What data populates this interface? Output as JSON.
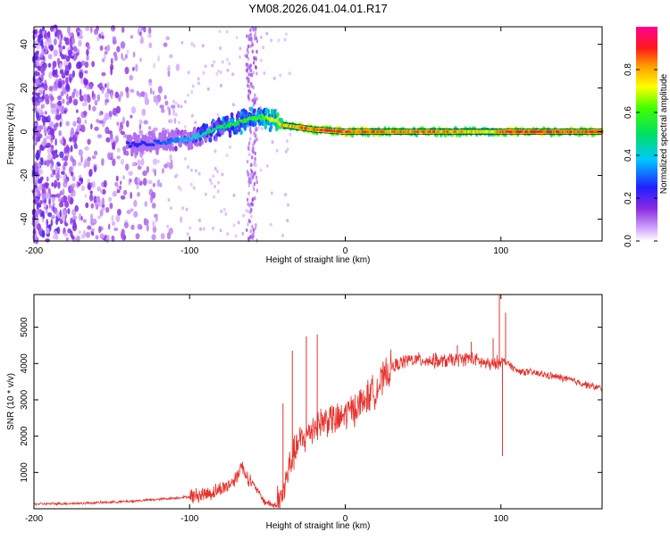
{
  "chart_data": [
    {
      "type": "heatmap",
      "title": "YM08.2026.041.04.01.R17",
      "xlabel": "Height of straight line (km)",
      "ylabel": "Frequency (Hz)",
      "xlim": [
        -200,
        165
      ],
      "ylim": [
        -50,
        48
      ],
      "xticks": [
        -200,
        -100,
        0,
        100
      ],
      "xtick_labels": [
        "-200",
        "-100",
        "0",
        "100"
      ],
      "yticks": [
        -40,
        -20,
        0,
        20,
        40
      ],
      "ytick_labels": [
        "-40",
        "-20",
        "0",
        "20",
        "40"
      ],
      "colorbar": {
        "label": "Normalized spectral amplitude",
        "range": [
          0,
          1
        ],
        "ticks": [
          0,
          0.2,
          0.4,
          0.6,
          0.8
        ],
        "tick_labels": [
          "0.0",
          "0.2",
          "0.4",
          "0.6",
          "0.8"
        ],
        "colormap": "rainbow (white-violet-blue-cyan-green-yellow-orange-red-magenta)"
      },
      "ridge": {
        "description": "dominant frequency track vs height",
        "x": [
          -140,
          -120,
          -100,
          -90,
          -80,
          -70,
          -60,
          -55,
          -50,
          -45,
          -40,
          -30,
          -20,
          -10,
          0,
          20,
          40,
          60,
          80,
          95,
          100,
          120,
          140,
          165
        ],
        "freq_hz": [
          -6,
          -5,
          -3,
          -1,
          2,
          4,
          6,
          7,
          6,
          5,
          3,
          2,
          1,
          0.5,
          0,
          0,
          0,
          0,
          0,
          0,
          0,
          0,
          0,
          0
        ],
        "amplitude": [
          0.25,
          0.3,
          0.4,
          0.5,
          0.55,
          0.6,
          0.6,
          0.65,
          0.7,
          0.75,
          0.85,
          0.9,
          0.95,
          0.95,
          0.95,
          0.9,
          0.9,
          0.9,
          0.85,
          0.8,
          0.95,
          0.95,
          0.95,
          0.95
        ]
      },
      "noise_region": {
        "x_range": [
          -200,
          -115
        ],
        "description": "scattered low-amplitude noise across full band"
      },
      "vertical_band": {
        "x_center": -60,
        "description": "broadband faint vertical stripe"
      }
    },
    {
      "type": "line",
      "xlabel": "Height of straight line (km)",
      "ylabel": "SNR (10 * v/v)",
      "xlim": [
        -200,
        165
      ],
      "ylim": [
        0,
        5900
      ],
      "xticks": [
        -200,
        -100,
        0,
        100
      ],
      "xtick_labels": [
        "-200",
        "-100",
        "0",
        "100"
      ],
      "yticks": [
        1000,
        2000,
        3000,
        4000,
        5000
      ],
      "ytick_labels": [
        "1000",
        "2000",
        "3000",
        "4000",
        "5000"
      ],
      "series": [
        {
          "name": "SNR",
          "color": "#e8302a",
          "x": [
            -200,
            -170,
            -140,
            -120,
            -100,
            -85,
            -75,
            -70,
            -67,
            -63,
            -58,
            -52,
            -45,
            -40,
            -35,
            -30,
            -25,
            -20,
            -15,
            -10,
            -5,
            0,
            10,
            20,
            30,
            40,
            50,
            60,
            70,
            80,
            90,
            95,
            100,
            105,
            110,
            120,
            140,
            165
          ],
          "y": [
            130,
            150,
            200,
            260,
            330,
            450,
            650,
            850,
            1200,
            900,
            600,
            200,
            80,
            400,
            1300,
            1800,
            2000,
            2300,
            2400,
            2500,
            2400,
            2600,
            2900,
            3300,
            3900,
            4100,
            4100,
            4050,
            4100,
            4150,
            4000,
            3950,
            4100,
            4000,
            3800,
            3750,
            3600,
            3300
          ]
        }
      ],
      "spikes": [
        {
          "x": -40,
          "y": 2900
        },
        {
          "x": -34,
          "y": 4350
        },
        {
          "x": -25,
          "y": 4750
        },
        {
          "x": -18,
          "y": 4800
        },
        {
          "x": 58,
          "y": 4300
        },
        {
          "x": 72,
          "y": 4500
        },
        {
          "x": 81,
          "y": 4600
        },
        {
          "x": 95,
          "y": 4700
        },
        {
          "x": 99,
          "y": 5900
        },
        {
          "x": 101,
          "y": 1450
        },
        {
          "x": 103,
          "y": 5400
        }
      ]
    }
  ]
}
